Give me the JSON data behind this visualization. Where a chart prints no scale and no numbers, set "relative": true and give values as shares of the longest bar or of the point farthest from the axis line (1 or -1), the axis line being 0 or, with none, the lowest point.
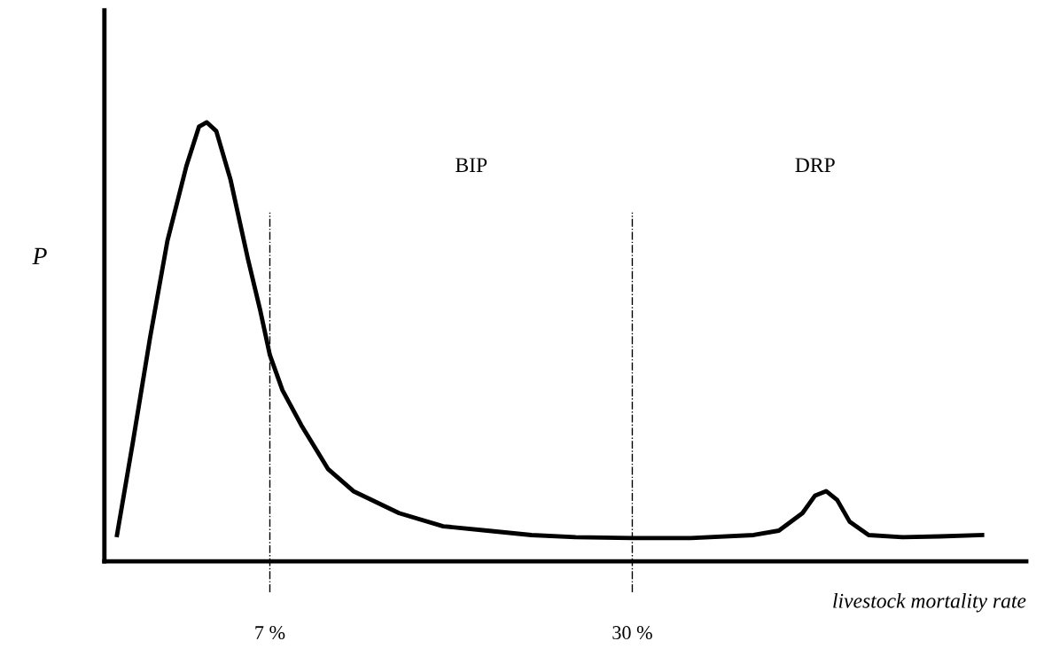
{
  "chart_data": {
    "type": "line",
    "relative": true,
    "xlabel": "livestock mortality rate",
    "ylabel": "P",
    "x": [
      -2.7,
      -1.7,
      -0.6,
      0.5,
      1.7,
      2.5,
      3.0,
      3.6,
      4.5,
      5.6,
      6.4,
      7.0,
      7.8,
      9.0,
      10.7,
      12.3,
      15.2,
      18.0,
      20.8,
      23.6,
      26.4,
      30.0,
      33.7,
      37.7,
      39.3,
      40.8,
      41.6,
      42.3,
      43.0,
      43.8,
      45.0,
      47.2,
      49.5,
      52.2
    ],
    "series": [
      {
        "color": "#000000",
        "values": [
          0.06,
          0.27,
          0.51,
          0.73,
          0.9,
          0.99,
          1.0,
          0.98,
          0.87,
          0.69,
          0.57,
          0.47,
          0.39,
          0.31,
          0.21,
          0.16,
          0.11,
          0.08,
          0.07,
          0.06,
          0.055,
          0.053,
          0.053,
          0.06,
          0.07,
          0.11,
          0.15,
          0.16,
          0.14,
          0.09,
          0.06,
          0.055,
          0.057,
          0.06
        ]
      }
    ],
    "xlim": [
      -3.5,
      55
    ],
    "xticks": [
      {
        "value": 7,
        "label": "7 %"
      },
      {
        "value": 30,
        "label": "30 %"
      }
    ],
    "ref_lines": [
      {
        "axis": "x",
        "value": 7,
        "color": "#000000",
        "line_style": "dashdot"
      },
      {
        "axis": "x",
        "value": 30,
        "color": "#000000",
        "line_style": "dashdot"
      }
    ],
    "annotations": [
      "BIP",
      "DRP"
    ],
    "grid": false,
    "legend": false,
    "marker": "none",
    "line_style": "solid"
  }
}
